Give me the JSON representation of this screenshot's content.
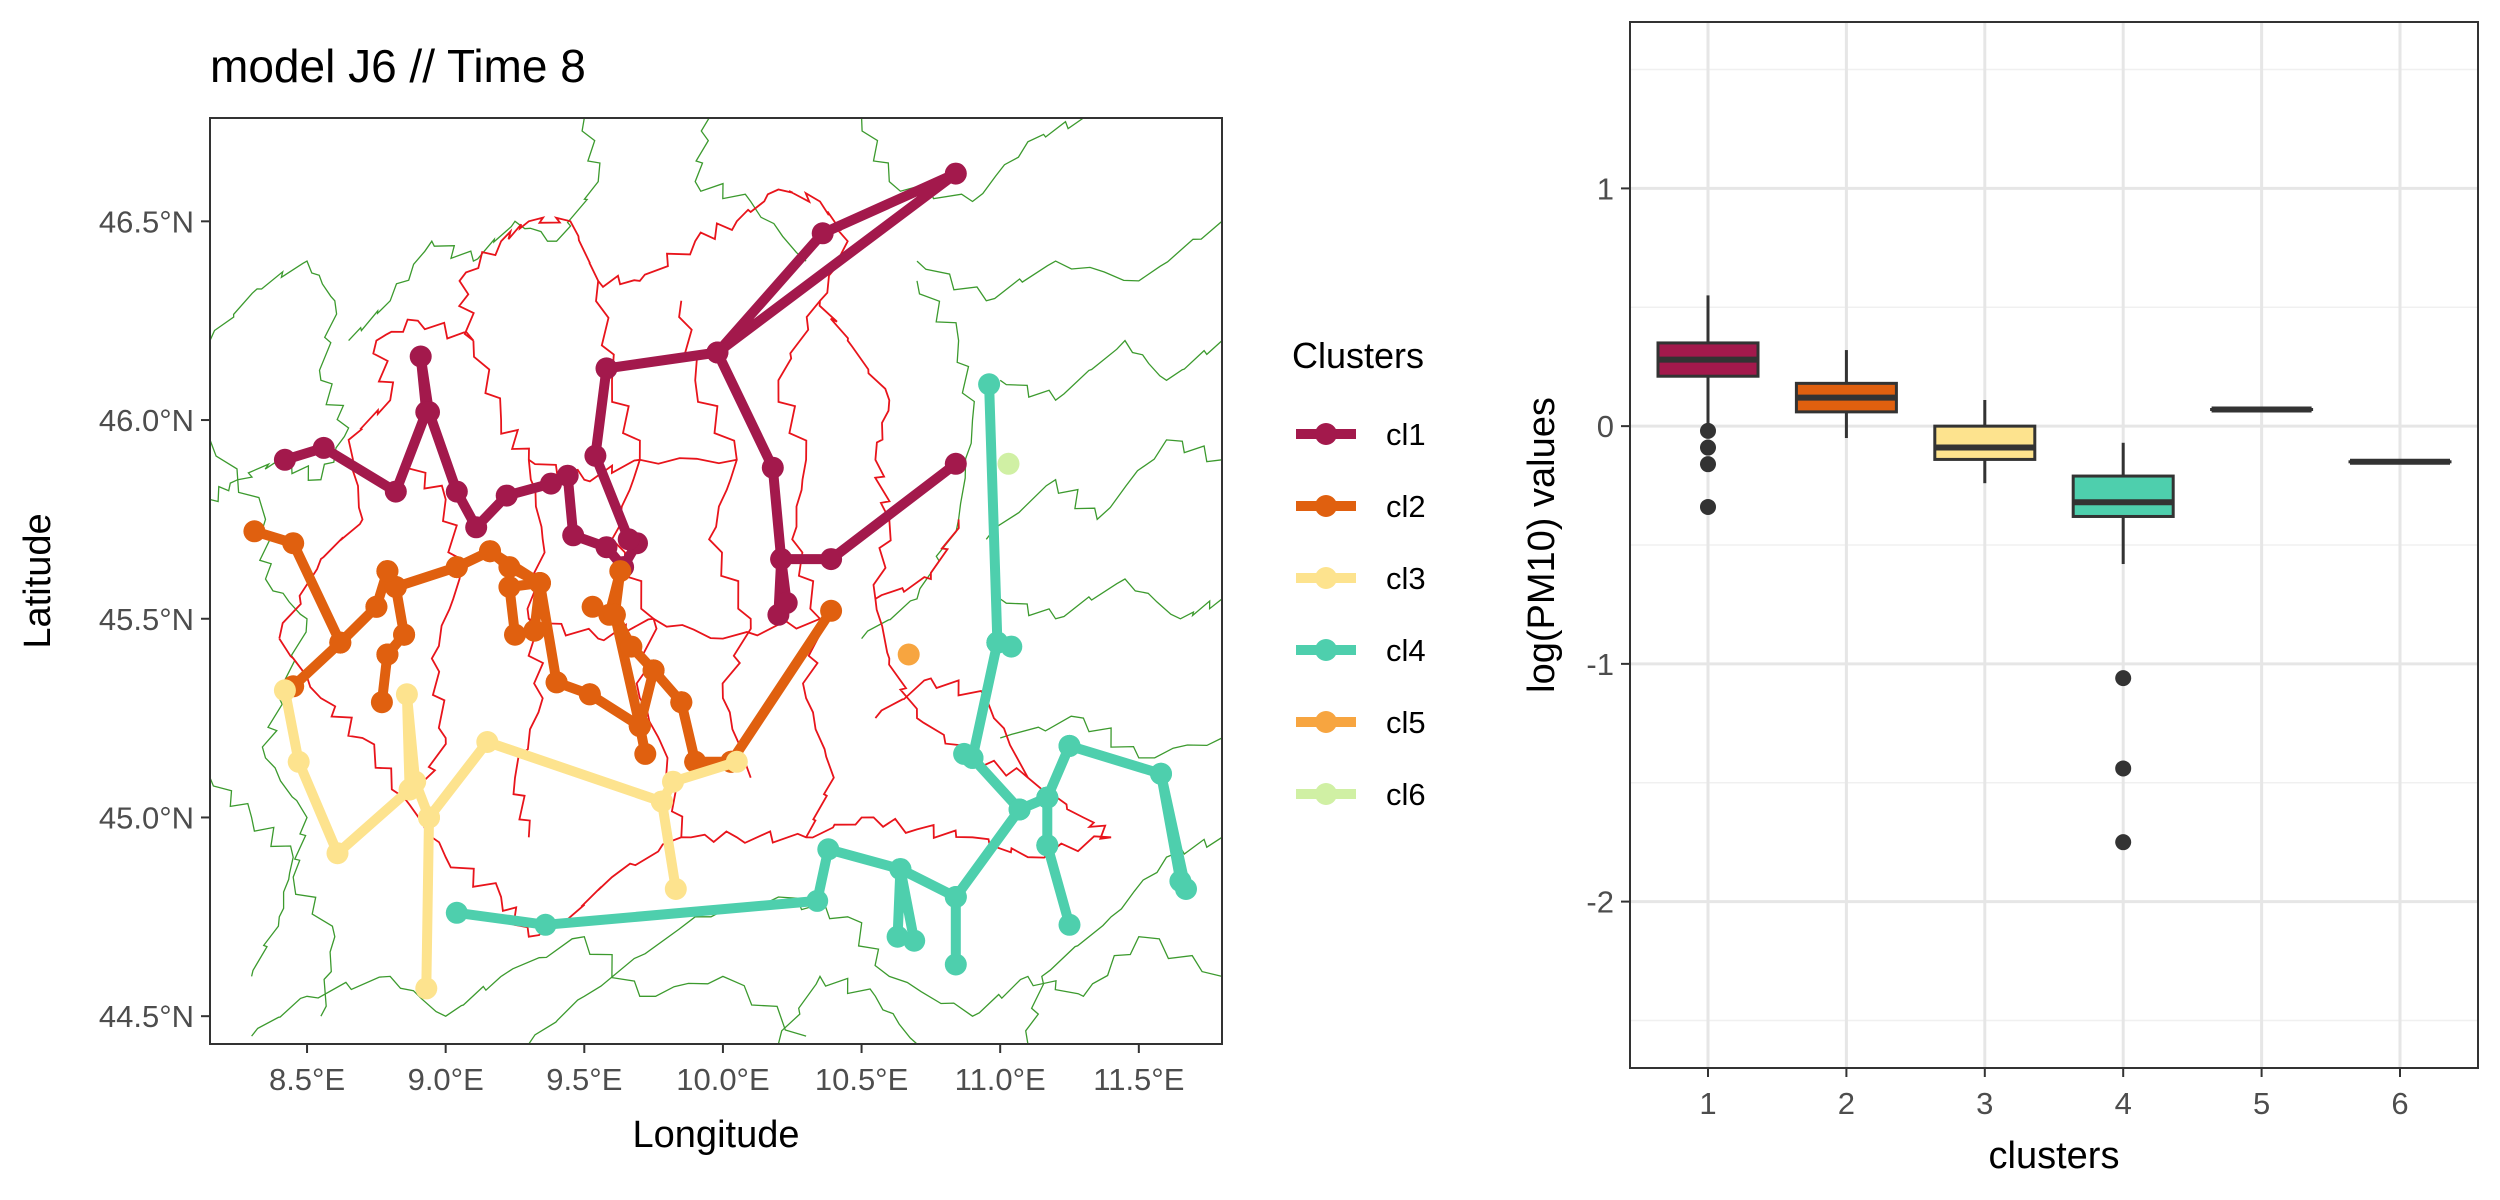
{
  "chart_data": [
    {
      "type": "scatter",
      "title": "model J6 // Time 8",
      "xlabel": "Longitude",
      "ylabel": "Latitude",
      "xlim": [
        8.15,
        11.8
      ],
      "ylim": [
        44.43,
        46.76
      ],
      "xticks": [
        "8.5°E",
        "9.0°E",
        "9.5°E",
        "10.0°E",
        "10.5°E",
        "11.0°E",
        "11.5°E"
      ],
      "xtick_values": [
        8.5,
        9.0,
        9.5,
        10.0,
        10.5,
        11.0,
        11.5
      ],
      "yticks": [
        "44.5°N",
        "45.0°N",
        "45.5°N",
        "46.0°N",
        "46.5°N"
      ],
      "ytick_values": [
        44.5,
        45.0,
        45.5,
        46.0,
        46.5
      ],
      "grid": false,
      "legend_title": "Clusters",
      "legend_position": "right",
      "series": [
        {
          "name": "cl1",
          "color": "#a3194c",
          "points": [
            [
              8.42,
              45.9
            ],
            [
              8.56,
              45.93
            ],
            [
              8.82,
              45.82
            ],
            [
              8.93,
              46.02
            ],
            [
              8.91,
              46.16
            ],
            [
              8.94,
              46.02
            ],
            [
              9.04,
              45.82
            ],
            [
              9.11,
              45.73
            ],
            [
              9.22,
              45.81
            ],
            [
              9.38,
              45.84
            ],
            [
              9.44,
              45.86
            ],
            [
              9.46,
              45.71
            ],
            [
              9.58,
              45.68
            ],
            [
              9.64,
              45.63
            ],
            [
              9.69,
              45.69
            ],
            [
              9.66,
              45.7
            ],
            [
              9.54,
              45.91
            ],
            [
              9.58,
              46.13
            ],
            [
              9.98,
              46.17
            ],
            [
              10.36,
              46.47
            ],
            [
              10.84,
              46.62
            ],
            [
              9.98,
              46.17
            ],
            [
              10.18,
              45.88
            ],
            [
              10.21,
              45.65
            ],
            [
              10.2,
              45.51
            ],
            [
              10.23,
              45.54
            ],
            [
              10.21,
              45.65
            ],
            [
              10.39,
              45.65
            ],
            [
              10.84,
              45.89
            ]
          ]
        },
        {
          "name": "cl2",
          "color": "#e0600f",
          "points": [
            [
              8.31,
              45.72
            ],
            [
              8.45,
              45.69
            ],
            [
              8.62,
              45.44
            ],
            [
              8.75,
              45.53
            ],
            [
              8.79,
              45.62
            ],
            [
              8.82,
              45.58
            ],
            [
              9.04,
              45.63
            ],
            [
              9.16,
              45.67
            ],
            [
              9.23,
              45.63
            ],
            [
              9.34,
              45.59
            ],
            [
              9.32,
              45.47
            ],
            [
              9.25,
              45.46
            ],
            [
              9.23,
              45.58
            ],
            [
              9.34,
              45.59
            ],
            [
              9.4,
              45.34
            ],
            [
              9.52,
              45.31
            ],
            [
              9.7,
              45.23
            ],
            [
              9.72,
              45.16
            ],
            [
              9.7,
              45.23
            ],
            [
              9.75,
              45.37
            ],
            [
              9.85,
              45.29
            ],
            [
              9.9,
              45.14
            ],
            [
              10.03,
              45.14
            ],
            [
              10.39,
              45.52
            ],
            [
              10.03,
              45.14
            ],
            [
              9.9,
              45.14
            ],
            [
              9.85,
              45.29
            ],
            [
              9.75,
              45.37
            ],
            [
              9.67,
              45.43
            ],
            [
              9.61,
              45.51
            ],
            [
              9.63,
              45.62
            ],
            [
              9.59,
              45.51
            ],
            [
              9.53,
              45.53
            ],
            [
              9.61,
              45.51
            ],
            [
              9.7,
              45.23
            ],
            [
              9.52,
              45.31
            ],
            [
              9.4,
              45.34
            ],
            [
              9.34,
              45.59
            ],
            [
              9.16,
              45.67
            ],
            [
              9.04,
              45.63
            ],
            [
              8.82,
              45.58
            ],
            [
              8.85,
              45.46
            ],
            [
              8.79,
              45.41
            ],
            [
              8.77,
              45.29
            ],
            [
              8.79,
              45.41
            ],
            [
              8.85,
              45.46
            ],
            [
              8.82,
              45.58
            ],
            [
              8.79,
              45.62
            ],
            [
              8.75,
              45.53
            ],
            [
              8.62,
              45.44
            ],
            [
              8.45,
              45.33
            ]
          ]
        },
        {
          "name": "cl3",
          "color": "#fde38e",
          "points": [
            [
              8.42,
              45.32
            ],
            [
              8.47,
              45.14
            ],
            [
              8.61,
              44.91
            ],
            [
              8.87,
              45.07
            ],
            [
              8.86,
              45.31
            ],
            [
              8.89,
              45.09
            ],
            [
              8.94,
              45.0
            ],
            [
              8.93,
              44.57
            ],
            [
              8.94,
              45.0
            ],
            [
              9.15,
              45.19
            ],
            [
              9.78,
              45.04
            ],
            [
              9.83,
              44.82
            ],
            [
              9.78,
              45.04
            ],
            [
              9.82,
              45.09
            ],
            [
              10.05,
              45.14
            ]
          ]
        },
        {
          "name": "cl4",
          "color": "#4ecfad",
          "points": [
            [
              9.04,
              44.76
            ],
            [
              9.36,
              44.73
            ],
            [
              10.34,
              44.79
            ],
            [
              10.38,
              44.92
            ],
            [
              10.64,
              44.87
            ],
            [
              10.63,
              44.7
            ],
            [
              10.69,
              44.69
            ],
            [
              10.64,
              44.87
            ],
            [
              10.84,
              44.8
            ],
            [
              10.84,
              44.63
            ],
            [
              10.84,
              44.8
            ],
            [
              11.07,
              45.02
            ],
            [
              11.17,
              45.05
            ],
            [
              11.25,
              45.18
            ],
            [
              11.58,
              45.11
            ],
            [
              11.65,
              44.84
            ],
            [
              11.67,
              44.82
            ],
            [
              11.58,
              45.11
            ],
            [
              11.25,
              45.18
            ],
            [
              11.17,
              45.05
            ],
            [
              11.17,
              44.93
            ],
            [
              11.25,
              44.73
            ],
            [
              11.17,
              44.93
            ],
            [
              11.17,
              45.05
            ],
            [
              11.07,
              45.02
            ],
            [
              10.9,
              45.15
            ],
            [
              10.99,
              45.44
            ],
            [
              10.96,
              46.09
            ],
            [
              10.99,
              45.44
            ],
            [
              11.04,
              45.43
            ],
            [
              10.99,
              45.44
            ],
            [
              10.9,
              45.15
            ],
            [
              10.87,
              45.16
            ]
          ]
        },
        {
          "name": "cl5",
          "color": "#f7a540",
          "points": [
            [
              10.67,
              45.41
            ]
          ]
        },
        {
          "name": "cl6",
          "color": "#d0f0a4",
          "points": [
            [
              11.03,
              45.89
            ]
          ]
        }
      ]
    },
    {
      "type": "box",
      "title": "",
      "xlabel": "clusters",
      "ylabel": "log(PM10) values",
      "ylim": [
        -2.7,
        1.7
      ],
      "categories": [
        "1",
        "2",
        "3",
        "4",
        "5",
        "6"
      ],
      "yticks": [
        "1",
        "0",
        "-1",
        "-2"
      ],
      "ytick_values": [
        1,
        0,
        -1,
        -2
      ],
      "grid": true,
      "boxes": [
        {
          "category": "1",
          "color": "#a3194c",
          "lower_whisker": -0.02,
          "q1": 0.21,
          "median": 0.28,
          "q3": 0.35,
          "upper_whisker": 0.55,
          "outliers": [
            -0.02,
            -0.09,
            -0.16,
            -0.34
          ]
        },
        {
          "category": "2",
          "color": "#e0600f",
          "lower_whisker": -0.05,
          "q1": 0.06,
          "median": 0.12,
          "q3": 0.18,
          "upper_whisker": 0.32,
          "outliers": []
        },
        {
          "category": "3",
          "color": "#fde38e",
          "lower_whisker": -0.24,
          "q1": -0.14,
          "median": -0.09,
          "q3": 0.0,
          "upper_whisker": 0.11,
          "outliers": []
        },
        {
          "category": "4",
          "color": "#4ecfad",
          "lower_whisker": -0.58,
          "q1": -0.38,
          "median": -0.32,
          "q3": -0.21,
          "upper_whisker": -0.07,
          "outliers": [
            -1.06,
            -1.44,
            -1.75
          ]
        },
        {
          "category": "5",
          "color": "#f7a540",
          "lower_whisker": 0.07,
          "q1": 0.07,
          "median": 0.07,
          "q3": 0.07,
          "upper_whisker": 0.07,
          "outliers": []
        },
        {
          "category": "6",
          "color": "#d0f0a4",
          "lower_whisker": -0.15,
          "q1": -0.15,
          "median": -0.15,
          "q3": -0.15,
          "upper_whisker": -0.15,
          "outliers": []
        }
      ]
    }
  ]
}
